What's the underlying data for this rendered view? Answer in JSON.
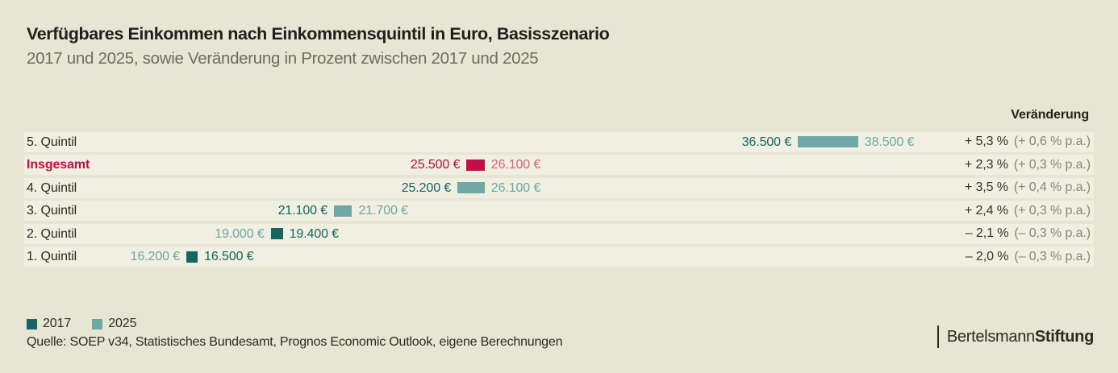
{
  "page": {
    "background": "#e7e5d4",
    "row_stripe": "#f0efe1"
  },
  "header": {
    "title": "Verfügbares Einkommen nach Einkommensquintil in Euro, Basisszenario",
    "subtitle": "2017 und 2025, sowie Veränderung in Prozent zwischen 2017 und 2025"
  },
  "change_column_header": "Veränderung",
  "colors": {
    "teal_2017": "#136661",
    "teal_2025": "#6fa8a6",
    "crimson": {
      "low": "#a8163f",
      "bar": "#c50e49",
      "high": "#d2637c"
    },
    "highlight_label": "#c00d45"
  },
  "chart_data": {
    "type": "bar",
    "orientation": "horizontal",
    "title": "Verfügbares Einkommen nach Einkommensquintil in Euro, Basisszenario",
    "subtitle": "2017 und 2025, sowie Veränderung in Prozent zwischen 2017 und 2025",
    "unit": "€",
    "categories": [
      "5. Quintil",
      "Insgesamt",
      "4. Quintil",
      "3. Quintil",
      "2. Quintil",
      "1. Quintil"
    ],
    "series": [
      {
        "name": "2017",
        "color": "#136661",
        "values": [
          36500,
          25500,
          25200,
          21100,
          19400,
          16500
        ]
      },
      {
        "name": "2025",
        "color": "#6fa8a6",
        "values": [
          38500,
          26100,
          26100,
          21700,
          19000,
          16200
        ]
      }
    ],
    "change_percent": [
      "+ 5,3 %",
      "+ 2,3 %",
      "+ 3,5 %",
      "+ 2,4 %",
      "– 2,1 %",
      "– 2,0 %"
    ],
    "change_per_annum": [
      "(+ 0,6 % p.a.)",
      "(+ 0,3 % p.a.)",
      "(+ 0,4 % p.a.)",
      "(+ 0,3 % p.a.)",
      "(– 0,3 % p.a.)",
      "(– 0,3 % p.a.)"
    ],
    "highlight_row": "Insgesamt",
    "legend_position": "bottom-left",
    "grid": false,
    "note": "bars span from lower to higher value on a shared euro axis"
  },
  "rows": [
    {
      "label": "5. Quintil",
      "theme": "teal",
      "highlight": false,
      "v_low": 36500,
      "v_high": 38500,
      "low_year": "2017",
      "high_year": "2025",
      "left_value": "36.500 €",
      "right_value": "38.500 €",
      "change": "+ 5,3 %",
      "change_pa": "(+ 0,6 % p.a.)"
    },
    {
      "label": "Insgesamt",
      "theme": "crimson",
      "highlight": true,
      "v_low": 25500,
      "v_high": 26100,
      "low_year": "2017",
      "high_year": "2025",
      "left_value": "25.500 €",
      "right_value": "26.100 €",
      "change": "+ 2,3 %",
      "change_pa": "(+ 0,3 % p.a.)"
    },
    {
      "label": "4. Quintil",
      "theme": "teal",
      "highlight": false,
      "v_low": 25200,
      "v_high": 26100,
      "low_year": "2017",
      "high_year": "2025",
      "left_value": "25.200 €",
      "right_value": "26.100 €",
      "change": "+ 3,5 %",
      "change_pa": "(+ 0,4 % p.a.)"
    },
    {
      "label": "3. Quintil",
      "theme": "teal",
      "highlight": false,
      "v_low": 21100,
      "v_high": 21700,
      "low_year": "2017",
      "high_year": "2025",
      "left_value": "21.100 €",
      "right_value": "21.700 €",
      "change": "+ 2,4 %",
      "change_pa": "(+ 0,3 % p.a.)"
    },
    {
      "label": "2. Quintil",
      "theme": "teal",
      "highlight": false,
      "v_low": 19000,
      "v_high": 19400,
      "low_year": "2025",
      "high_year": "2017",
      "left_value": "19.000 €",
      "right_value": "19.400 €",
      "change": "– 2,1 %",
      "change_pa": "(– 0,3 % p.a.)"
    },
    {
      "label": "1. Quintil",
      "theme": "teal",
      "highlight": false,
      "v_low": 16200,
      "v_high": 16500,
      "low_year": "2025",
      "high_year": "2017",
      "left_value": "16.200 €",
      "right_value": "16.500 €",
      "change": "– 2,0 %",
      "change_pa": "(– 0,3 % p.a.)"
    }
  ],
  "legend": [
    {
      "label": "2017",
      "color": "#136661"
    },
    {
      "label": "2025",
      "color": "#6fa8a6"
    }
  ],
  "source": "Quelle: SOEP v34, Statistisches Bundesamt, Prognos Economic Outlook, eigene Berechnungen",
  "logo": {
    "name_regular": "Bertelsmann",
    "name_bold": "Stiftung"
  }
}
